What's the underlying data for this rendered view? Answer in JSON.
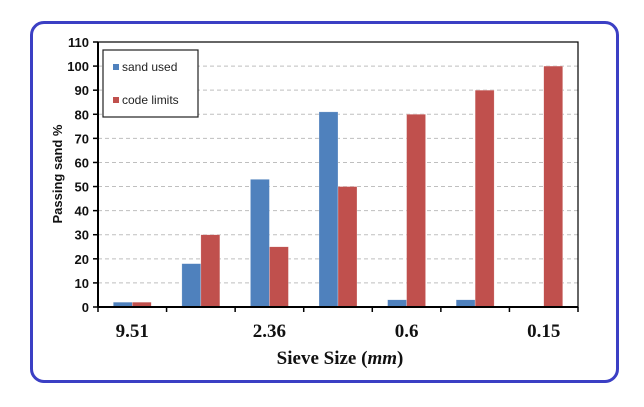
{
  "chart_data": {
    "type": "bar",
    "title": "",
    "xlabel": "Sieve Size",
    "xlabel_unit": "mm",
    "ylabel": "Passing sand %",
    "ylim": [
      0,
      110
    ],
    "yticks": [
      0,
      10,
      20,
      30,
      40,
      50,
      60,
      70,
      80,
      90,
      100,
      110
    ],
    "grid": true,
    "legend_position": "top-left",
    "categories": [
      "9.51",
      "4.75",
      "2.36",
      "1.18",
      "0.6",
      "0.3",
      "0.15"
    ],
    "visible_category_labels": [
      "9.51",
      "",
      "2.36",
      "",
      "0.6",
      "",
      "0.15"
    ],
    "series": [
      {
        "name": "sand used",
        "color": "#4f81bd",
        "values": [
          2,
          18,
          53,
          81,
          3,
          3,
          0
        ]
      },
      {
        "name": "code limits",
        "color": "#c0504d",
        "values": [
          2,
          30,
          25,
          50,
          80,
          90,
          100
        ]
      }
    ]
  },
  "colors": {
    "frame": "#3b3fc4",
    "grid": "#bfbfbf",
    "axis": "#000000"
  }
}
